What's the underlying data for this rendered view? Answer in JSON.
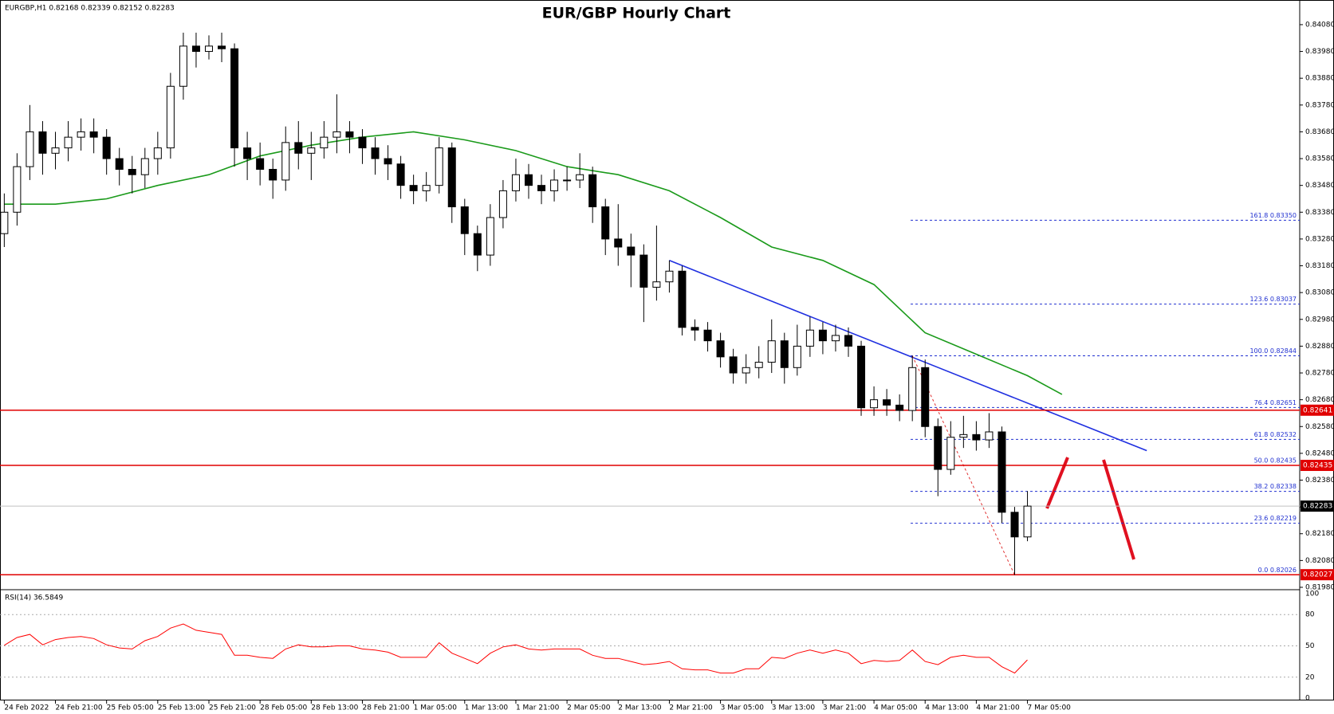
{
  "chart_data": {
    "type": "candlestick",
    "title": "EUR/GBP Hourly Chart",
    "info": "EURGBP,H1  0.82168 0.82339 0.82152 0.82283",
    "up_color": "#ffffff",
    "down_color": "#000000",
    "categories": [
      "24 Feb 2022",
      null,
      null,
      null,
      "24 Feb 21:00",
      null,
      null,
      null,
      "25 Feb 05:00",
      null,
      null,
      null,
      "25 Feb 13:00",
      null,
      null,
      null,
      "25 Feb 21:00",
      null,
      null,
      null,
      "28 Feb 05:00",
      null,
      null,
      null,
      "28 Feb 13:00",
      null,
      null,
      null,
      "28 Feb 21:00",
      null,
      null,
      null,
      "1 Mar 05:00",
      null,
      null,
      null,
      "1 Mar 13:00",
      null,
      null,
      null,
      "1 Mar 21:00",
      null,
      null,
      null,
      "2 Mar 05:00",
      null,
      null,
      null,
      "2 Mar 13:00",
      null,
      null,
      null,
      "2 Mar 21:00",
      null,
      null,
      null,
      "3 Mar 05:00",
      null,
      null,
      null,
      "3 Mar 13:00",
      null,
      null,
      null,
      "3 Mar 21:00",
      null,
      null,
      null,
      "4 Mar 05:00",
      null,
      null,
      null,
      "4 Mar 13:00",
      null,
      null,
      null,
      "4 Mar 21:00",
      null,
      null,
      null,
      "7 Mar 05:00"
    ],
    "open": [
      0.833,
      0.8338,
      0.8355,
      0.8368,
      0.836,
      0.8362,
      0.8366,
      0.8368,
      0.8366,
      0.8358,
      0.8354,
      0.8352,
      0.8358,
      0.8362,
      0.8385,
      0.84,
      0.8398,
      0.84,
      0.8399,
      0.8362,
      0.8358,
      0.8354,
      0.835,
      0.8364,
      0.836,
      0.8362,
      0.8366,
      0.8368,
      0.8366,
      0.8362,
      0.8358,
      0.8356,
      0.8348,
      0.8346,
      0.8348,
      0.8362,
      0.834,
      0.833,
      0.8322,
      0.8336,
      0.8346,
      0.8352,
      0.8348,
      0.8346,
      0.835,
      0.835,
      0.8352,
      0.834,
      0.8328,
      0.8325,
      0.8322,
      0.831,
      0.8312,
      0.8316,
      0.8295,
      0.8294,
      0.829,
      0.8284,
      0.8278,
      0.828,
      0.8282,
      0.829,
      0.828,
      0.8288,
      0.8294,
      0.829,
      0.8292,
      0.8288,
      0.8265,
      0.8268,
      0.8266,
      0.8264,
      0.828,
      0.8258,
      0.8242,
      0.8254,
      0.8255,
      0.8253,
      0.8256,
      0.8226,
      0.82168
    ],
    "high": [
      0.8345,
      0.836,
      0.8378,
      0.8372,
      0.8368,
      0.8372,
      0.8373,
      0.8373,
      0.8369,
      0.8362,
      0.8359,
      0.8362,
      0.8368,
      0.839,
      0.8405,
      0.8405,
      0.8404,
      0.8405,
      0.8401,
      0.8368,
      0.8364,
      0.8358,
      0.837,
      0.8372,
      0.8368,
      0.8372,
      0.8382,
      0.8372,
      0.8369,
      0.8366,
      0.8363,
      0.8359,
      0.8352,
      0.8353,
      0.8366,
      0.8364,
      0.8343,
      0.8333,
      0.8341,
      0.835,
      0.8358,
      0.8356,
      0.8352,
      0.8354,
      0.8355,
      0.836,
      0.8355,
      0.8343,
      0.8341,
      0.833,
      0.8326,
      0.8333,
      0.832,
      0.8318,
      0.8298,
      0.8297,
      0.8293,
      0.8287,
      0.8285,
      0.8288,
      0.8298,
      0.8293,
      0.8296,
      0.8299,
      0.8297,
      0.8296,
      0.8295,
      0.829,
      0.8273,
      0.8272,
      0.827,
      0.82844,
      0.8283,
      0.8261,
      0.826,
      0.8262,
      0.826,
      0.8263,
      0.8258,
      0.8228,
      0.82339
    ],
    "low": [
      0.8325,
      0.8333,
      0.835,
      0.8352,
      0.8354,
      0.8357,
      0.8361,
      0.836,
      0.8352,
      0.8348,
      0.8345,
      0.8347,
      0.8352,
      0.8358,
      0.838,
      0.8392,
      0.8395,
      0.8394,
      0.8355,
      0.835,
      0.8348,
      0.8343,
      0.8346,
      0.8354,
      0.835,
      0.8358,
      0.836,
      0.836,
      0.8356,
      0.8352,
      0.835,
      0.8343,
      0.8341,
      0.8342,
      0.8345,
      0.8334,
      0.8322,
      0.8316,
      0.8318,
      0.8332,
      0.8342,
      0.8343,
      0.8341,
      0.8342,
      0.8346,
      0.8347,
      0.8334,
      0.8322,
      0.8318,
      0.831,
      0.8297,
      0.8305,
      0.8308,
      0.8292,
      0.829,
      0.8286,
      0.828,
      0.8274,
      0.8274,
      0.8276,
      0.8278,
      0.8274,
      0.8277,
      0.8284,
      0.8285,
      0.8286,
      0.8284,
      0.8262,
      0.8262,
      0.8262,
      0.826,
      0.826,
      0.8254,
      0.8232,
      0.824,
      0.825,
      0.8249,
      0.825,
      0.8222,
      0.82026,
      0.82152
    ],
    "close": [
      0.8338,
      0.8355,
      0.8368,
      0.836,
      0.8362,
      0.8366,
      0.8368,
      0.8366,
      0.8358,
      0.8354,
      0.8352,
      0.8358,
      0.8362,
      0.8385,
      0.84,
      0.8398,
      0.84,
      0.8399,
      0.8362,
      0.8358,
      0.8354,
      0.835,
      0.8364,
      0.836,
      0.8362,
      0.8366,
      0.8368,
      0.8366,
      0.8362,
      0.8358,
      0.8356,
      0.8348,
      0.8346,
      0.8348,
      0.8362,
      0.834,
      0.833,
      0.8322,
      0.8336,
      0.8346,
      0.8352,
      0.8348,
      0.8346,
      0.835,
      0.835,
      0.8352,
      0.834,
      0.8328,
      0.8325,
      0.8322,
      0.831,
      0.8312,
      0.8316,
      0.8295,
      0.8294,
      0.829,
      0.8284,
      0.8278,
      0.828,
      0.8282,
      0.829,
      0.828,
      0.8288,
      0.8294,
      0.829,
      0.8292,
      0.8288,
      0.8265,
      0.8268,
      0.8266,
      0.8264,
      0.828,
      0.8258,
      0.8242,
      0.8254,
      0.8255,
      0.8253,
      0.8256,
      0.8226,
      0.82168,
      0.82283
    ],
    "ylim": [
      0.81977,
      0.84172
    ],
    "yticks": [
      {
        "value": 0.8198,
        "label": "0.81980"
      },
      {
        "value": 0.8208,
        "label": "0.82080"
      },
      {
        "value": 0.8218,
        "label": "0.82180"
      },
      {
        "value": 0.8228,
        "label": "0.82280"
      },
      {
        "value": 0.8238,
        "label": "0.82380"
      },
      {
        "value": 0.8248,
        "label": "0.82480"
      },
      {
        "value": 0.8258,
        "label": "0.82580"
      },
      {
        "value": 0.8268,
        "label": "0.82680"
      },
      {
        "value": 0.8278,
        "label": "0.82780"
      },
      {
        "value": 0.8288,
        "label": "0.82880"
      },
      {
        "value": 0.8298,
        "label": "0.82980"
      },
      {
        "value": 0.8308,
        "label": "0.83080"
      },
      {
        "value": 0.8318,
        "label": "0.83180"
      },
      {
        "value": 0.8328,
        "label": "0.83280"
      },
      {
        "value": 0.8338,
        "label": "0.83380"
      },
      {
        "value": 0.8348,
        "label": "0.83480"
      },
      {
        "value": 0.8358,
        "label": "0.83580"
      },
      {
        "value": 0.8368,
        "label": "0.83680"
      },
      {
        "value": 0.8378,
        "label": "0.83780"
      },
      {
        "value": 0.8388,
        "label": "0.83880"
      },
      {
        "value": 0.8398,
        "label": "0.83980"
      },
      {
        "value": 0.8408,
        "label": "0.84080"
      }
    ],
    "ma": {
      "color": "#1a9a1a",
      "x": [
        0,
        4,
        8,
        12,
        16,
        20,
        24,
        28,
        32,
        36,
        40,
        44,
        48,
        52,
        56,
        60,
        64,
        68,
        72,
        76,
        80,
        82.7
      ],
      "values": [
        0.8341,
        0.8341,
        0.8343,
        0.8348,
        0.8352,
        0.8359,
        0.8363,
        0.8366,
        0.8368,
        0.8365,
        0.8361,
        0.8355,
        0.8352,
        0.8346,
        0.8336,
        0.8325,
        0.832,
        0.8311,
        0.8293,
        0.8285,
        0.8277,
        0.827
      ]
    },
    "trendline": {
      "color": "#1f2fe0",
      "x": [
        52,
        89.33
      ],
      "values": [
        0.832,
        0.8249
      ]
    },
    "fib_anchor": {
      "color": "#e03030",
      "x": [
        71,
        79
      ],
      "values": [
        0.82844,
        0.82026
      ]
    },
    "fib_color": "#2030d0",
    "fib": [
      {
        "value": 0.8335,
        "label": "161.8 0.83350"
      },
      {
        "value": 0.83037,
        "label": "123.6 0.83037"
      },
      {
        "value": 0.82844,
        "label": "100.0 0.82844"
      },
      {
        "value": 0.82651,
        "label": "76.4 0.82651"
      },
      {
        "value": 0.82532,
        "label": "61.8 0.82532"
      },
      {
        "value": 0.82435,
        "label": "50.0 0.82435"
      },
      {
        "value": 0.82338,
        "label": "38.2 0.82338"
      },
      {
        "value": 0.82219,
        "label": "23.6 0.82219"
      },
      {
        "value": 0.82026,
        "label": "0.0 0.82026"
      }
    ],
    "level_color": "#e00000",
    "levels": [
      {
        "value": 0.82641,
        "label": "0.82641"
      },
      {
        "value": 0.82435,
        "label": "0.82435"
      },
      {
        "value": 0.82027,
        "label": "0.82027"
      }
    ],
    "current": {
      "value": 0.82283,
      "label": "0.82283"
    },
    "rsi": {
      "title": "RSI(14) 36.5849",
      "color": "#ff0000",
      "ylim": [
        0,
        100
      ],
      "yticks": [
        0,
        20,
        50,
        80,
        100
      ],
      "levels": [
        20,
        50,
        80
      ],
      "values": [
        50.5,
        58,
        61,
        51,
        56,
        58,
        59,
        57,
        51,
        48,
        47,
        55,
        59,
        67,
        71,
        65,
        63,
        61,
        41,
        41,
        39,
        38,
        47,
        51,
        49,
        49,
        50,
        50,
        47,
        46,
        44,
        39,
        39,
        39,
        53,
        43,
        38,
        33,
        43,
        49,
        51,
        47,
        46,
        47,
        47,
        47,
        41,
        38,
        38,
        35,
        32,
        33,
        35,
        28,
        27,
        27,
        24,
        24,
        28,
        28,
        39,
        38,
        43,
        46,
        43,
        46,
        43,
        33,
        36,
        35,
        36,
        46,
        35,
        32,
        39,
        41,
        39,
        39,
        30,
        24,
        36.5849
      ]
    }
  }
}
